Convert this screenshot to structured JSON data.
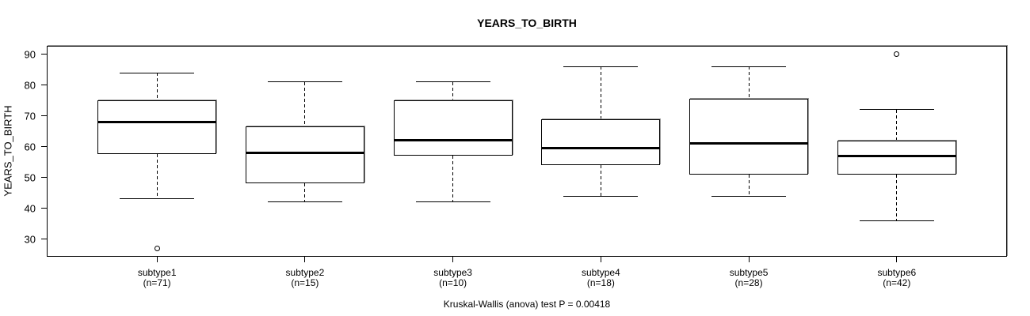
{
  "chart_data": {
    "type": "boxplot",
    "title": "YEARS_TO_BIRTH",
    "ylabel": "YEARS_TO_BIRTH",
    "xlabel": "",
    "caption": "Kruskal-Wallis (anova) test P = 0.00418",
    "p_value": 0.00418,
    "ylim": [
      24.5,
      92.5
    ],
    "yticks": [
      30,
      40,
      50,
      60,
      70,
      80,
      90
    ],
    "grid": false,
    "legend": "none",
    "groups": [
      {
        "label": "subtype1",
        "sublabel": "(n=71)",
        "n": 71,
        "whisker_low": 43,
        "q1": 57.5,
        "median": 68,
        "q3": 75,
        "whisker_high": 84,
        "outliers": [
          27
        ]
      },
      {
        "label": "subtype2",
        "sublabel": "(n=15)",
        "n": 15,
        "whisker_low": 42,
        "q1": 48,
        "median": 58,
        "q3": 66.5,
        "whisker_high": 81,
        "outliers": []
      },
      {
        "label": "subtype3",
        "sublabel": "(n=10)",
        "n": 10,
        "whisker_low": 42,
        "q1": 57,
        "median": 62,
        "q3": 75,
        "whisker_high": 81,
        "outliers": []
      },
      {
        "label": "subtype4",
        "sublabel": "(n=18)",
        "n": 18,
        "whisker_low": 44,
        "q1": 54,
        "median": 59.5,
        "q3": 69,
        "whisker_high": 86,
        "outliers": []
      },
      {
        "label": "subtype5",
        "sublabel": "(n=28)",
        "n": 28,
        "whisker_low": 44,
        "q1": 51,
        "median": 61,
        "q3": 75.5,
        "whisker_high": 86,
        "outliers": []
      },
      {
        "label": "subtype6",
        "sublabel": "(n=42)",
        "n": 42,
        "whisker_low": 36,
        "q1": 51,
        "median": 57,
        "q3": 62,
        "whisker_high": 72,
        "outliers": [
          90
        ]
      }
    ],
    "colors": {
      "background": "#ffffff",
      "line": "#000000",
      "text": "#000000",
      "box_fill": "#ffffff",
      "shadow": "#9a9a9a"
    }
  }
}
